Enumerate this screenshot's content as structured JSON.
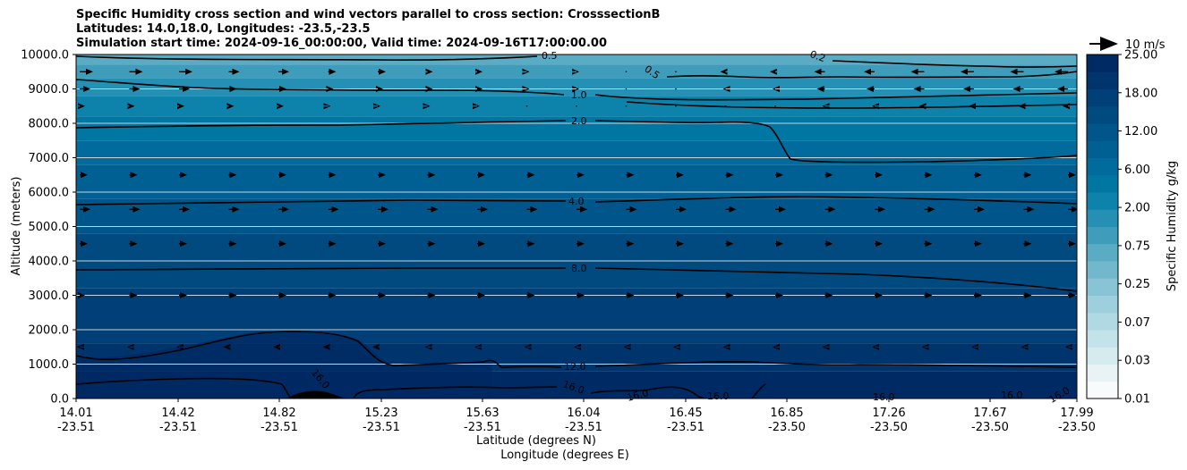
{
  "chart_data": {
    "type": "contourf",
    "title_lines": [
      "Specific Humidity cross section and wind vectors parallel to cross section: CrosssectionB",
      "Latitudes: 14.0,18.0, Longitudes: -23.5,-23.5",
      "Simulation start time: 2024-09-16_00:00:00, Valid time: 2024-09-16T17:00:00.00"
    ],
    "xlabel_lat": "Latitude (degrees N)",
    "xlabel_lon": "Longitude (degrees E)",
    "ylabel": "Altitude (meters)",
    "xlim": [
      14.01,
      17.99
    ],
    "ylim": [
      0,
      10000
    ],
    "x_ticks": [
      {
        "lat": "14.01",
        "lon": "-23.51"
      },
      {
        "lat": "14.42",
        "lon": "-23.51"
      },
      {
        "lat": "14.82",
        "lon": "-23.51"
      },
      {
        "lat": "15.23",
        "lon": "-23.51"
      },
      {
        "lat": "15.63",
        "lon": "-23.51"
      },
      {
        "lat": "16.04",
        "lon": "-23.51"
      },
      {
        "lat": "16.45",
        "lon": "-23.51"
      },
      {
        "lat": "16.85",
        "lon": "-23.50"
      },
      {
        "lat": "17.26",
        "lon": "-23.50"
      },
      {
        "lat": "17.67",
        "lon": "-23.50"
      },
      {
        "lat": "17.99",
        "lon": "-23.50"
      }
    ],
    "y_ticks": [
      "0.0",
      "1000.0",
      "2000.0",
      "3000.0",
      "4000.0",
      "5000.0",
      "6000.0",
      "7000.0",
      "8000.0",
      "9000.0",
      "10000.0"
    ],
    "y_tick_values": [
      0,
      1000,
      2000,
      3000,
      4000,
      5000,
      6000,
      7000,
      8000,
      9000,
      10000
    ],
    "colorbar": {
      "label": "Specific Humidity g/kg",
      "tick_labels": [
        "0.01",
        "0.03",
        "0.07",
        "0.25",
        "0.75",
        "2.00",
        "6.00",
        "12.00",
        "18.00",
        "25.00"
      ],
      "n_levels": 20,
      "colors": [
        "#f7fbfc",
        "#e9f3f6",
        "#d6ebf0",
        "#c3e2ea",
        "#b0d9e3",
        "#9dcfdc",
        "#88c4d5",
        "#72b8cd",
        "#5aabc4",
        "#3f9dbb",
        "#2590b3",
        "#0d82ab",
        "#0076a3",
        "#006b9c",
        "#006093",
        "#00558a",
        "#004a80",
        "#003f77",
        "#00346d",
        "#002a63"
      ]
    },
    "quiver_key": {
      "label": "10 m/s",
      "speed": 10
    },
    "contour_lines": [
      {
        "label": "0.2",
        "levels_m": [
          9900,
          9820,
          9780
        ]
      },
      {
        "label": "0.5",
        "levels_m": [
          9950,
          9450,
          9500
        ]
      },
      {
        "label": "1.0",
        "levels_m": [
          9270,
          8850,
          8600
        ]
      },
      {
        "label": "2.0",
        "levels_m": [
          7880,
          8070,
          7050
        ]
      },
      {
        "label": "4.0",
        "levels_m": [
          5650,
          5800,
          5650
        ]
      },
      {
        "label": "8.0",
        "levels_m": [
          3750,
          3750,
          3150
        ]
      },
      {
        "label": "12.0",
        "levels_m": [
          1250,
          950,
          950
        ]
      },
      {
        "label": "16.0",
        "levels_m": [
          300,
          300,
          200
        ]
      }
    ],
    "wind_vectors_mps": [
      {
        "alt_m": 9500,
        "speeds": [
          5,
          5,
          4,
          3,
          2,
          1,
          0,
          -2,
          -4,
          -5,
          -5
        ]
      },
      {
        "alt_m": 9000,
        "speeds": [
          4,
          4,
          3,
          2,
          2,
          1,
          0,
          -1,
          -3,
          -4,
          -4
        ]
      },
      {
        "alt_m": 8500,
        "speeds": [
          2,
          2,
          2,
          1,
          1,
          0,
          0,
          0,
          -1,
          -2,
          -2
        ]
      },
      {
        "alt_m": 6500,
        "speeds": [
          3,
          3,
          3,
          3,
          3,
          3,
          3,
          3,
          3,
          3,
          3
        ]
      },
      {
        "alt_m": 5500,
        "speeds": [
          4,
          4,
          4,
          4,
          4,
          4,
          4,
          4,
          4,
          4,
          4
        ]
      },
      {
        "alt_m": 4500,
        "speeds": [
          3,
          3,
          3,
          3,
          3,
          3,
          3,
          3,
          3,
          3,
          3
        ]
      },
      {
        "alt_m": 3000,
        "speeds": [
          2,
          3,
          3,
          3,
          3,
          3,
          3,
          3,
          3,
          3,
          3
        ]
      },
      {
        "alt_m": 1500,
        "speeds": [
          -1,
          -1,
          -2,
          -2,
          -1,
          -1,
          -1,
          -1,
          -1,
          -1,
          -1
        ]
      }
    ]
  }
}
